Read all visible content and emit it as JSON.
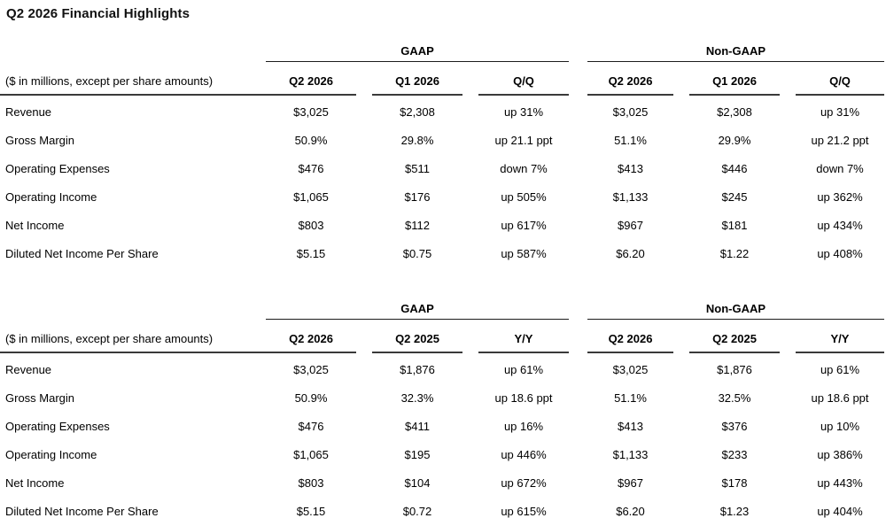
{
  "title": "Q2 2026 Financial Highlights",
  "colors": {
    "background": "#ffffff",
    "text": "#000000",
    "rule_heavy": "#3a3a3a",
    "rule_light": "#1c1c1c"
  },
  "tables": [
    {
      "name": "quarter-over-quarter",
      "row_label_header": "($ in millions, except per share amounts)",
      "groups": [
        {
          "label": "GAAP",
          "columns": [
            "Q2 2026",
            "Q1 2026",
            "Q/Q"
          ]
        },
        {
          "label": "Non-GAAP",
          "columns": [
            "Q2 2026",
            "Q1 2026",
            "Q/Q"
          ]
        }
      ],
      "rows": [
        {
          "label": "Revenue",
          "gaap": [
            "$3,025",
            "$2,308",
            "up 31%"
          ],
          "non_gaap": [
            "$3,025",
            "$2,308",
            "up 31%"
          ]
        },
        {
          "label": "Gross Margin",
          "gaap": [
            "50.9%",
            "29.8%",
            "up 21.1 ppt"
          ],
          "non_gaap": [
            "51.1%",
            "29.9%",
            "up 21.2 ppt"
          ]
        },
        {
          "label": "Operating Expenses",
          "gaap": [
            "$476",
            "$511",
            "down 7%"
          ],
          "non_gaap": [
            "$413",
            "$446",
            "down 7%"
          ]
        },
        {
          "label": "Operating Income",
          "gaap": [
            "$1,065",
            "$176",
            "up 505%"
          ],
          "non_gaap": [
            "$1,133",
            "$245",
            "up 362%"
          ]
        },
        {
          "label": "Net Income",
          "gaap": [
            "$803",
            "$112",
            "up 617%"
          ],
          "non_gaap": [
            "$967",
            "$181",
            "up 434%"
          ]
        },
        {
          "label": "Diluted Net Income Per Share",
          "gaap": [
            "$5.15",
            "$0.75",
            "up 587%"
          ],
          "non_gaap": [
            "$6.20",
            "$1.22",
            "up 408%"
          ]
        }
      ]
    },
    {
      "name": "year-over-year",
      "row_label_header": "($ in millions, except per share amounts)",
      "groups": [
        {
          "label": "GAAP",
          "columns": [
            "Q2 2026",
            "Q2 2025",
            "Y/Y"
          ]
        },
        {
          "label": "Non-GAAP",
          "columns": [
            "Q2 2026",
            "Q2 2025",
            "Y/Y"
          ]
        }
      ],
      "rows": [
        {
          "label": "Revenue",
          "gaap": [
            "$3,025",
            "$1,876",
            "up 61%"
          ],
          "non_gaap": [
            "$3,025",
            "$1,876",
            "up 61%"
          ]
        },
        {
          "label": "Gross Margin",
          "gaap": [
            "50.9%",
            "32.3%",
            "up 18.6 ppt"
          ],
          "non_gaap": [
            "51.1%",
            "32.5%",
            "up 18.6 ppt"
          ]
        },
        {
          "label": "Operating Expenses",
          "gaap": [
            "$476",
            "$411",
            "up 16%"
          ],
          "non_gaap": [
            "$413",
            "$376",
            "up 10%"
          ]
        },
        {
          "label": "Operating Income",
          "gaap": [
            "$1,065",
            "$195",
            "up 446%"
          ],
          "non_gaap": [
            "$1,133",
            "$233",
            "up 386%"
          ]
        },
        {
          "label": "Net Income",
          "gaap": [
            "$803",
            "$104",
            "up 672%"
          ],
          "non_gaap": [
            "$967",
            "$178",
            "up 443%"
          ]
        },
        {
          "label": "Diluted Net Income Per Share",
          "gaap": [
            "$5.15",
            "$0.72",
            "up 615%"
          ],
          "non_gaap": [
            "$6.20",
            "$1.23",
            "up 404%"
          ]
        }
      ]
    }
  ]
}
